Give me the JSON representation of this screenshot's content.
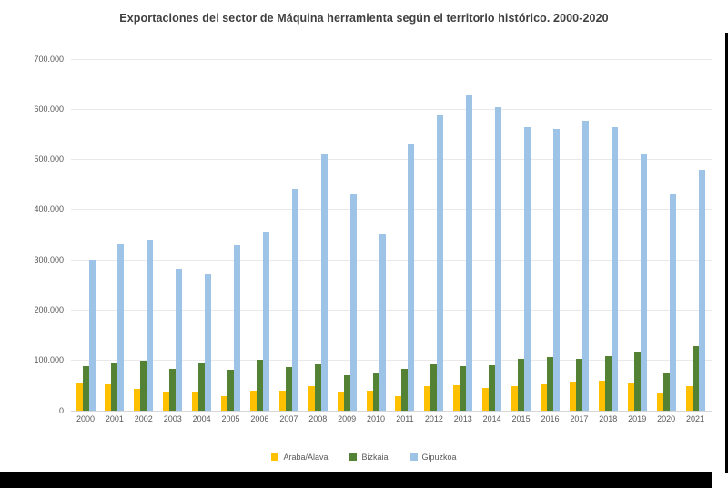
{
  "chart_data": {
    "type": "bar",
    "title": "Exportaciones del sector de Máquina herramienta según el territorio histórico. 2000-2020",
    "categories": [
      "2000",
      "2001",
      "2002",
      "2003",
      "2004",
      "2005",
      "2006",
      "2007",
      "2008",
      "2009",
      "2010",
      "2011",
      "2012",
      "2013",
      "2014",
      "2015",
      "2016",
      "2017",
      "2018",
      "2019",
      "2020",
      "2021"
    ],
    "series": [
      {
        "name": "Araba/Álava",
        "color": "#FFC000",
        "values": [
          55000,
          52000,
          43000,
          38000,
          38000,
          29000,
          40000,
          40000,
          49000,
          38000,
          40000,
          29000,
          48000,
          50000,
          46000,
          49000,
          52000,
          58000,
          60000,
          54000,
          36000,
          48000
        ]
      },
      {
        "name": "Bizkaia",
        "color": "#548235",
        "values": [
          88000,
          96000,
          99000,
          83000,
          96000,
          82000,
          102000,
          86000,
          93000,
          71000,
          74000,
          84000,
          93000,
          89000,
          91000,
          103000,
          107000,
          103000,
          108000,
          117000,
          75000,
          129000
        ]
      },
      {
        "name": "Gipuzkoa",
        "color": "#9DC3E6",
        "values": [
          300000,
          331000,
          340000,
          282000,
          271000,
          330000,
          357000,
          442000,
          511000,
          430000,
          353000,
          532000,
          590000,
          627000,
          604000,
          564000,
          560000,
          577000,
          564000,
          511000,
          433000,
          480000
        ]
      }
    ],
    "ylim": [
      0,
      700000
    ],
    "ytick_interval": 100000,
    "ytick_labels": [
      "0",
      "100.000",
      "200.000",
      "300.000",
      "400.000",
      "500.000",
      "600.000",
      "700.000"
    ],
    "grid": true,
    "legend_position": "bottom"
  }
}
